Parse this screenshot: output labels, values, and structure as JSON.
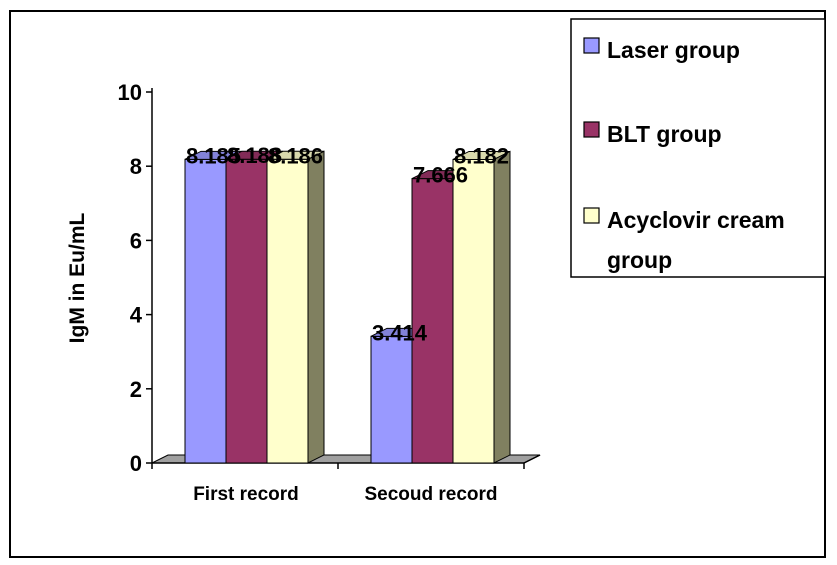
{
  "chart_data": {
    "type": "bar",
    "title": "",
    "xlabel": "",
    "ylabel": "IgM in Eu/mL",
    "ylim": [
      0,
      10
    ],
    "yticks": [
      0,
      2,
      4,
      6,
      8,
      10
    ],
    "grid": false,
    "legend_position": "right",
    "style": "3d-clustered-bar",
    "categories": [
      "First record",
      "Secoud record"
    ],
    "series": [
      {
        "name": "Laser group",
        "values": [
          8.185,
          3.414
        ],
        "color": "#9999ff"
      },
      {
        "name": "BLT group",
        "values": [
          8.188,
          7.666
        ],
        "color": "#993366"
      },
      {
        "name": "Acyclovir cream group",
        "values": [
          8.186,
          8.182
        ],
        "color": "#ffffcc"
      }
    ],
    "data_labels": [
      [
        "8.185",
        "3.414"
      ],
      [
        "8.188",
        "7.666"
      ],
      [
        "8.186",
        "8.182"
      ]
    ],
    "legend": [
      "Laser group",
      "BLT group",
      "Acyclovir cream",
      "group"
    ],
    "colors": {
      "side": "#808060",
      "top_shade": "#b0b0a0",
      "floor": "#a0a0a0",
      "axis": "#000000"
    }
  }
}
